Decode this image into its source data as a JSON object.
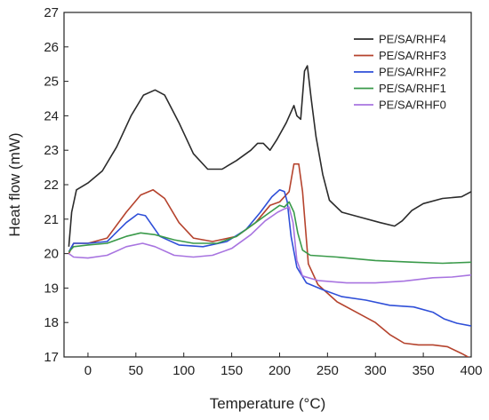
{
  "chart_data": {
    "type": "line",
    "xlabel": "Temperature (°C)",
    "ylabel": "Heat flow (mW)",
    "xlim": [
      -25,
      400
    ],
    "ylim": [
      17,
      27
    ],
    "xticks": [
      0,
      50,
      100,
      150,
      200,
      250,
      300,
      350,
      400
    ],
    "yticks": [
      17,
      18,
      19,
      20,
      21,
      22,
      23,
      24,
      25,
      26,
      27
    ],
    "legend_position": "top-right",
    "grid": false,
    "series": [
      {
        "name": "PE/SA/RHF4",
        "color": "#2b2b2b",
        "points": [
          [
            -20,
            20.2
          ],
          [
            -17,
            21.2
          ],
          [
            -12,
            21.85
          ],
          [
            0,
            22.05
          ],
          [
            15,
            22.4
          ],
          [
            30,
            23.1
          ],
          [
            45,
            24.0
          ],
          [
            58,
            24.6
          ],
          [
            70,
            24.75
          ],
          [
            80,
            24.6
          ],
          [
            95,
            23.8
          ],
          [
            110,
            22.9
          ],
          [
            125,
            22.45
          ],
          [
            140,
            22.45
          ],
          [
            155,
            22.7
          ],
          [
            170,
            23.0
          ],
          [
            177,
            23.2
          ],
          [
            183,
            23.2
          ],
          [
            190,
            23.0
          ],
          [
            197,
            23.3
          ],
          [
            207,
            23.8
          ],
          [
            215,
            24.3
          ],
          [
            218,
            24.0
          ],
          [
            222,
            23.9
          ],
          [
            226,
            25.3
          ],
          [
            229,
            25.45
          ],
          [
            233,
            24.5
          ],
          [
            238,
            23.4
          ],
          [
            245,
            22.3
          ],
          [
            252,
            21.55
          ],
          [
            265,
            21.2
          ],
          [
            285,
            21.05
          ],
          [
            305,
            20.9
          ],
          [
            320,
            20.8
          ],
          [
            328,
            20.95
          ],
          [
            338,
            21.25
          ],
          [
            350,
            21.45
          ],
          [
            370,
            21.6
          ],
          [
            390,
            21.65
          ],
          [
            400,
            21.8
          ]
        ]
      },
      {
        "name": "PE/SA/RHF3",
        "color": "#b5432d",
        "points": [
          [
            -20,
            20.0
          ],
          [
            -15,
            20.3
          ],
          [
            0,
            20.3
          ],
          [
            20,
            20.45
          ],
          [
            40,
            21.2
          ],
          [
            55,
            21.7
          ],
          [
            68,
            21.85
          ],
          [
            80,
            21.6
          ],
          [
            95,
            20.9
          ],
          [
            110,
            20.45
          ],
          [
            130,
            20.35
          ],
          [
            155,
            20.5
          ],
          [
            175,
            20.9
          ],
          [
            190,
            21.4
          ],
          [
            200,
            21.5
          ],
          [
            210,
            21.8
          ],
          [
            215,
            22.6
          ],
          [
            220,
            22.6
          ],
          [
            224,
            21.8
          ],
          [
            230,
            19.7
          ],
          [
            240,
            19.1
          ],
          [
            260,
            18.6
          ],
          [
            280,
            18.3
          ],
          [
            300,
            18.0
          ],
          [
            315,
            17.65
          ],
          [
            330,
            17.4
          ],
          [
            345,
            17.35
          ],
          [
            360,
            17.35
          ],
          [
            375,
            17.3
          ],
          [
            390,
            17.1
          ],
          [
            400,
            16.95
          ]
        ]
      },
      {
        "name": "PE/SA/RHF2",
        "color": "#2f4fd8",
        "points": [
          [
            -20,
            20.05
          ],
          [
            -15,
            20.3
          ],
          [
            0,
            20.3
          ],
          [
            20,
            20.35
          ],
          [
            40,
            20.9
          ],
          [
            52,
            21.15
          ],
          [
            60,
            21.1
          ],
          [
            75,
            20.5
          ],
          [
            95,
            20.25
          ],
          [
            120,
            20.2
          ],
          [
            145,
            20.35
          ],
          [
            165,
            20.7
          ],
          [
            180,
            21.2
          ],
          [
            192,
            21.65
          ],
          [
            200,
            21.85
          ],
          [
            205,
            21.8
          ],
          [
            208,
            21.5
          ],
          [
            212,
            20.5
          ],
          [
            218,
            19.6
          ],
          [
            228,
            19.15
          ],
          [
            245,
            18.95
          ],
          [
            265,
            18.75
          ],
          [
            290,
            18.65
          ],
          [
            315,
            18.5
          ],
          [
            340,
            18.45
          ],
          [
            360,
            18.3
          ],
          [
            372,
            18.1
          ],
          [
            385,
            17.98
          ],
          [
            400,
            17.9
          ]
        ]
      },
      {
        "name": "PE/SA/RHF1",
        "color": "#3a9a4a",
        "points": [
          [
            -20,
            20.05
          ],
          [
            -15,
            20.2
          ],
          [
            0,
            20.25
          ],
          [
            20,
            20.3
          ],
          [
            40,
            20.5
          ],
          [
            55,
            20.6
          ],
          [
            70,
            20.55
          ],
          [
            90,
            20.4
          ],
          [
            110,
            20.3
          ],
          [
            135,
            20.3
          ],
          [
            155,
            20.5
          ],
          [
            175,
            20.9
          ],
          [
            190,
            21.2
          ],
          [
            200,
            21.4
          ],
          [
            205,
            21.35
          ],
          [
            210,
            21.5
          ],
          [
            215,
            21.2
          ],
          [
            219,
            20.6
          ],
          [
            224,
            20.1
          ],
          [
            232,
            19.95
          ],
          [
            260,
            19.9
          ],
          [
            300,
            19.8
          ],
          [
            340,
            19.75
          ],
          [
            370,
            19.72
          ],
          [
            400,
            19.75
          ]
        ]
      },
      {
        "name": "PE/SA/RHF0",
        "color": "#a874e0",
        "points": [
          [
            -20,
            20.0
          ],
          [
            -15,
            19.9
          ],
          [
            0,
            19.87
          ],
          [
            20,
            19.95
          ],
          [
            40,
            20.2
          ],
          [
            57,
            20.3
          ],
          [
            70,
            20.2
          ],
          [
            90,
            19.95
          ],
          [
            110,
            19.9
          ],
          [
            130,
            19.95
          ],
          [
            150,
            20.15
          ],
          [
            170,
            20.55
          ],
          [
            185,
            20.95
          ],
          [
            198,
            21.2
          ],
          [
            205,
            21.3
          ],
          [
            210,
            21.35
          ],
          [
            214,
            20.9
          ],
          [
            218,
            19.8
          ],
          [
            224,
            19.35
          ],
          [
            240,
            19.22
          ],
          [
            270,
            19.15
          ],
          [
            300,
            19.15
          ],
          [
            330,
            19.2
          ],
          [
            360,
            19.3
          ],
          [
            380,
            19.32
          ],
          [
            400,
            19.38
          ]
        ]
      }
    ]
  }
}
